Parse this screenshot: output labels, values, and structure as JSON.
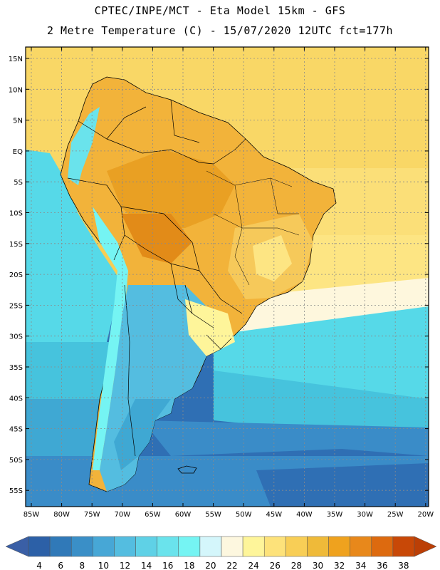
{
  "header": {
    "line1": "CPTEC/INPE/MCT  -   Eta Model 15km  -  GFS",
    "line2": "2 Metre Temperature (C) - 15/07/2020 12UTC fct=177h"
  },
  "map": {
    "lat_labels": [
      "15N",
      "10N",
      "5N",
      "EQ",
      "5S",
      "10S",
      "15S",
      "20S",
      "25S",
      "30S",
      "35S",
      "40S",
      "45S",
      "50S",
      "55S"
    ],
    "lon_labels": [
      "85W",
      "80W",
      "75W",
      "70W",
      "65W",
      "60W",
      "55W",
      "50W",
      "45W",
      "40W",
      "35W",
      "30W",
      "25W",
      "20W"
    ],
    "background_ocean_colors": [
      "#fde07a",
      "#f5cf57",
      "#eec04a",
      "#fff7dd",
      "#56d9e8",
      "#46c3dd",
      "#3fa8d3",
      "#3a8cc8",
      "#2f6fb4"
    ]
  },
  "colorbar": {
    "labels": [
      "4",
      "6",
      "8",
      "10",
      "12",
      "14",
      "16",
      "18",
      "20",
      "22",
      "24",
      "26",
      "28",
      "30",
      "32",
      "34",
      "36",
      "38"
    ],
    "colors": [
      "#2c60a7",
      "#3079b8",
      "#3a8fc7",
      "#47a7d6",
      "#54bde0",
      "#5fd1e6",
      "#6ae3ec",
      "#75f4f3",
      "#d4f6fb",
      "#fdf7df",
      "#fef59a",
      "#fde27a",
      "#f8ce56",
      "#efba39",
      "#efa21e",
      "#e8881b",
      "#dd6a0f",
      "#c84807"
    ],
    "low_cap_color": "#3a5fa6",
    "high_cap_color": "#bb3f06"
  }
}
